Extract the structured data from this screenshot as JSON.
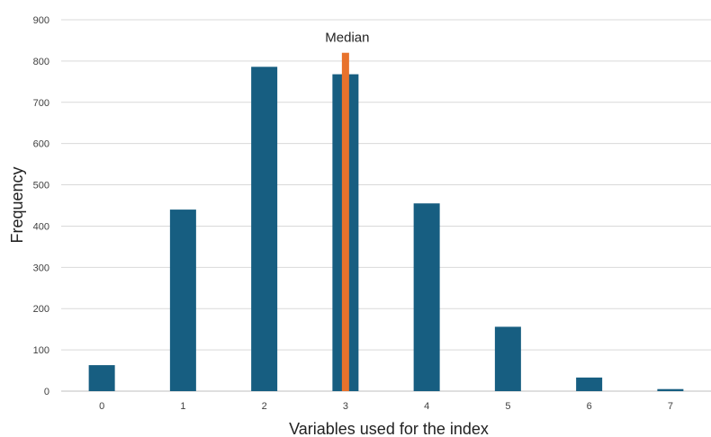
{
  "chart_data": {
    "type": "bar",
    "categories": [
      "0",
      "1",
      "2",
      "3",
      "4",
      "5",
      "6",
      "7"
    ],
    "values": [
      63,
      440,
      786,
      768,
      455,
      156,
      33,
      5
    ],
    "title": "",
    "xlabel": "Variables used for the index",
    "ylabel": "Frequency",
    "ylim": [
      0,
      900
    ],
    "yticks": [
      0,
      100,
      200,
      300,
      400,
      500,
      600,
      700,
      800,
      900
    ],
    "grid": "horizontal",
    "bar_color": "#175e81",
    "median": {
      "label": "Median",
      "category": "3",
      "top_value": 820,
      "color": "#e8722c"
    }
  }
}
